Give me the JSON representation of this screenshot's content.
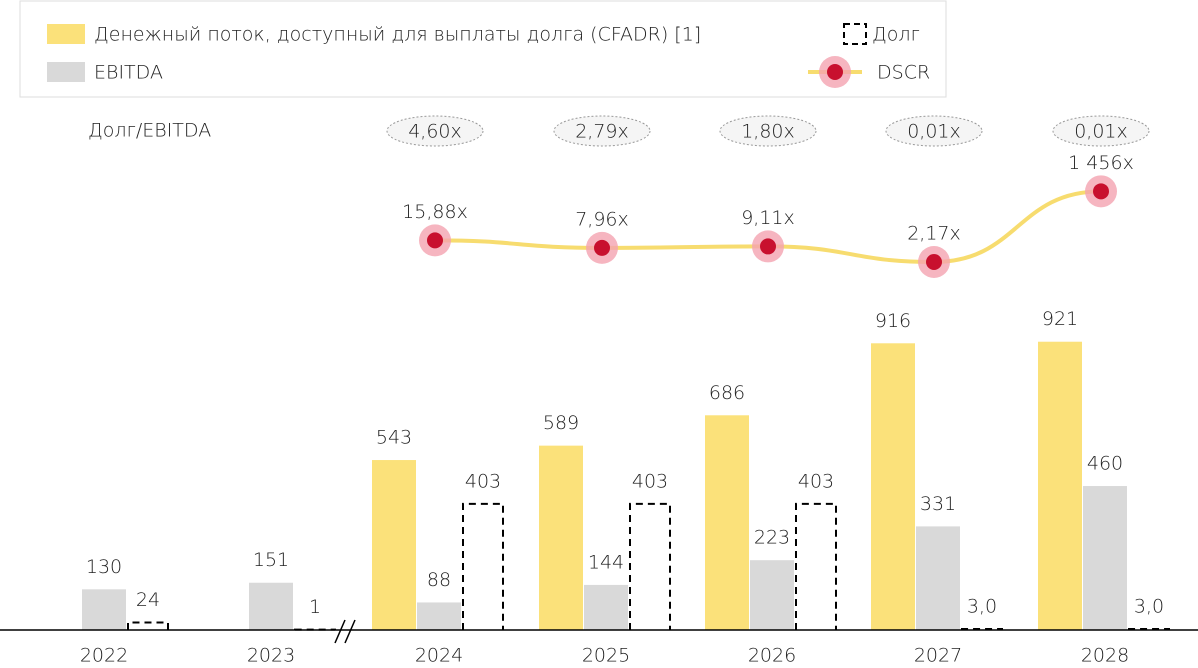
{
  "chart_data": {
    "type": "bar",
    "categories": [
      "2022",
      "2023",
      "2024",
      "2025",
      "2026",
      "2027",
      "2028"
    ],
    "series": [
      {
        "name": "Денежный поток, доступный для выплаты долга (CFADR) [1]",
        "color": "#fbe17a",
        "values": [
          null,
          null,
          543,
          589,
          686,
          916,
          921
        ]
      },
      {
        "name": "EBITDA",
        "color": "#d9d9d9",
        "values": [
          130,
          151,
          88,
          144,
          223,
          331,
          460
        ]
      },
      {
        "name": "Долг",
        "style": "dashed",
        "color": "#000000",
        "values": [
          24,
          1,
          403,
          403,
          403,
          3,
          3
        ],
        "value_labels": [
          "24",
          "1",
          "403",
          "403",
          "403",
          "3,0",
          "3,0"
        ]
      },
      {
        "name": "DSCR",
        "type": "line",
        "axis": "y2",
        "color": "#f7dc6f",
        "marker_color": "#c8102e",
        "values": [
          null,
          null,
          15.88,
          7.96,
          9.11,
          2.17,
          1456
        ],
        "value_labels": [
          null,
          null,
          "15,88x",
          "7,96x",
          "9,11x",
          "2,17x",
          "1 456x"
        ]
      }
    ],
    "ylim": [
      0,
      1000
    ],
    "y2lim": [
      1,
      100000
    ],
    "y2log": true,
    "ratio": {
      "label": "Долг/EBITDA",
      "values": [
        null,
        null,
        4.6,
        2.79,
        1.8,
        0.01,
        0.01
      ],
      "value_labels": [
        null,
        null,
        "4,60x",
        "2,79x",
        "1,80x",
        "0,01x",
        "0,01x"
      ]
    }
  }
}
